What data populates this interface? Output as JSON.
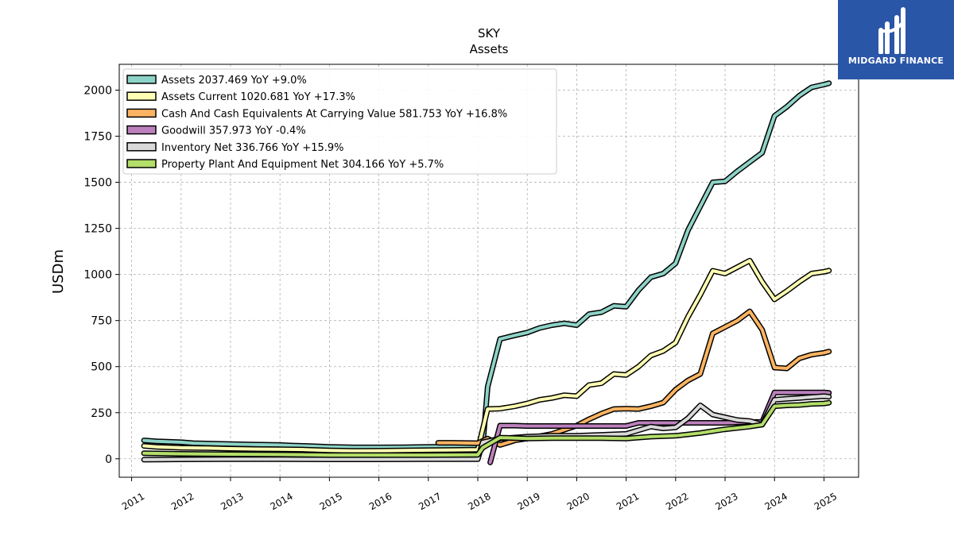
{
  "brand": {
    "name": "MIDGARD FINANCE",
    "color": "#2a56a8"
  },
  "chart_data": {
    "type": "line",
    "title": "SKY",
    "subtitle": "Assets",
    "ylabel": "USDm",
    "xlabel": "",
    "ylim": [
      -100,
      2140
    ],
    "xlim": [
      2010.75,
      2025.7
    ],
    "yticks": [
      0,
      250,
      500,
      750,
      1000,
      1250,
      1500,
      1750,
      2000
    ],
    "xticks": [
      "2011",
      "2012",
      "2013",
      "2014",
      "2015",
      "2016",
      "2017",
      "2018",
      "2019",
      "2020",
      "2021",
      "2022",
      "2023",
      "2024",
      "2025"
    ],
    "grid": true,
    "legend_position": "top-left",
    "series": [
      {
        "name": "Assets",
        "legend": "Assets  2037.469 YoY +9.0%",
        "color": "#8dd3c7",
        "points": [
          [
            2011.25,
            100
          ],
          [
            2011.5,
            95
          ],
          [
            2012,
            90
          ],
          [
            2012.25,
            85
          ],
          [
            2013,
            80
          ],
          [
            2013.5,
            77
          ],
          [
            2014,
            75
          ],
          [
            2014.25,
            72
          ],
          [
            2014.5,
            70
          ],
          [
            2015,
            65
          ],
          [
            2015.5,
            62
          ],
          [
            2016,
            62
          ],
          [
            2016.5,
            63
          ],
          [
            2017,
            65
          ],
          [
            2017.5,
            66
          ],
          [
            2018,
            68
          ],
          [
            2018.1,
            70
          ],
          [
            2018.2,
            390
          ],
          [
            2018.45,
            650
          ],
          [
            2018.75,
            670
          ],
          [
            2019,
            685
          ],
          [
            2019.25,
            710
          ],
          [
            2019.5,
            725
          ],
          [
            2019.75,
            735
          ],
          [
            2020,
            725
          ],
          [
            2020.25,
            785
          ],
          [
            2020.5,
            795
          ],
          [
            2020.75,
            830
          ],
          [
            2021,
            825
          ],
          [
            2021.25,
            915
          ],
          [
            2021.5,
            985
          ],
          [
            2021.75,
            1005
          ],
          [
            2022,
            1060
          ],
          [
            2022.25,
            1240
          ],
          [
            2022.5,
            1370
          ],
          [
            2022.75,
            1500
          ],
          [
            2023,
            1505
          ],
          [
            2023.25,
            1560
          ],
          [
            2023.5,
            1610
          ],
          [
            2023.75,
            1660
          ],
          [
            2024,
            1860
          ],
          [
            2024.25,
            1910
          ],
          [
            2024.5,
            1970
          ],
          [
            2024.75,
            2015
          ],
          [
            2025,
            2030
          ],
          [
            2025.1,
            2037.469
          ]
        ]
      },
      {
        "name": "Assets Current",
        "legend": "Assets Current  1020.681 YoY +17.3%",
        "color": "#ffffb3",
        "points": [
          [
            2011.25,
            70
          ],
          [
            2011.5,
            65
          ],
          [
            2012,
            60
          ],
          [
            2012.5,
            58
          ],
          [
            2013,
            55
          ],
          [
            2013.5,
            53
          ],
          [
            2014,
            52
          ],
          [
            2014.5,
            50
          ],
          [
            2015,
            45
          ],
          [
            2015.5,
            43
          ],
          [
            2016,
            44
          ],
          [
            2016.5,
            45
          ],
          [
            2017,
            47
          ],
          [
            2017.5,
            48
          ],
          [
            2018,
            50
          ],
          [
            2018.2,
            270
          ],
          [
            2018.45,
            272
          ],
          [
            2018.75,
            285
          ],
          [
            2019,
            300
          ],
          [
            2019.25,
            320
          ],
          [
            2019.5,
            330
          ],
          [
            2019.75,
            345
          ],
          [
            2020,
            340
          ],
          [
            2020.25,
            400
          ],
          [
            2020.5,
            410
          ],
          [
            2020.75,
            460
          ],
          [
            2021,
            455
          ],
          [
            2021.25,
            500
          ],
          [
            2021.5,
            560
          ],
          [
            2021.75,
            585
          ],
          [
            2022,
            630
          ],
          [
            2022.25,
            770
          ],
          [
            2022.5,
            890
          ],
          [
            2022.75,
            1020
          ],
          [
            2023,
            1005
          ],
          [
            2023.25,
            1040
          ],
          [
            2023.5,
            1075
          ],
          [
            2023.75,
            960
          ],
          [
            2024,
            865
          ],
          [
            2024.25,
            910
          ],
          [
            2024.5,
            960
          ],
          [
            2024.75,
            1005
          ],
          [
            2025,
            1015
          ],
          [
            2025.1,
            1020.681
          ]
        ]
      },
      {
        "name": "Cash And Cash Equivalents At Carrying Value",
        "legend": "Cash And Cash Equivalents At Carrying Value  581.753 YoY +16.8%",
        "color": "#fdb462",
        "points": [
          [
            2017.2,
            87
          ],
          [
            2017.5,
            87
          ],
          [
            2018,
            85
          ],
          [
            2018.2,
            110
          ],
          [
            2018.45,
            75
          ],
          [
            2018.75,
            100
          ],
          [
            2019,
            110
          ],
          [
            2019.5,
            135
          ],
          [
            2020,
            180
          ],
          [
            2020.25,
            215
          ],
          [
            2020.5,
            245
          ],
          [
            2020.75,
            270
          ],
          [
            2021,
            272
          ],
          [
            2021.25,
            270
          ],
          [
            2021.5,
            285
          ],
          [
            2021.75,
            305
          ],
          [
            2022,
            375
          ],
          [
            2022.25,
            425
          ],
          [
            2022.5,
            460
          ],
          [
            2022.75,
            680
          ],
          [
            2023,
            715
          ],
          [
            2023.25,
            750
          ],
          [
            2023.5,
            800
          ],
          [
            2023.75,
            700
          ],
          [
            2024,
            495
          ],
          [
            2024.25,
            490
          ],
          [
            2024.5,
            545
          ],
          [
            2024.75,
            565
          ],
          [
            2025,
            575
          ],
          [
            2025.1,
            581.753
          ]
        ]
      },
      {
        "name": "Goodwill",
        "legend": "Goodwill  357.973 YoY -0.4%",
        "color": "#bc80bd",
        "points": [
          [
            2018.25,
            -20
          ],
          [
            2018.45,
            180
          ],
          [
            2018.75,
            180
          ],
          [
            2019,
            178
          ],
          [
            2019.5,
            178
          ],
          [
            2020,
            178
          ],
          [
            2020.5,
            178
          ],
          [
            2021,
            178
          ],
          [
            2021.25,
            195
          ],
          [
            2021.5,
            195
          ],
          [
            2022,
            195
          ],
          [
            2022.5,
            195
          ],
          [
            2023,
            195
          ],
          [
            2023.5,
            200
          ],
          [
            2023.75,
            200
          ],
          [
            2024,
            360
          ],
          [
            2024.5,
            360
          ],
          [
            2025,
            360
          ],
          [
            2025.1,
            357.973
          ]
        ]
      },
      {
        "name": "Inventory Net",
        "legend": "Inventory Net  336.766 YoY +15.9%",
        "color": "#d9d9d9",
        "points": [
          [
            2011.25,
            -5
          ],
          [
            2012,
            -3
          ],
          [
            2013,
            -2
          ],
          [
            2014,
            -2
          ],
          [
            2015,
            -3
          ],
          [
            2016,
            -3
          ],
          [
            2017,
            -2
          ],
          [
            2018,
            -2
          ],
          [
            2018.1,
            90
          ],
          [
            2018.45,
            110
          ],
          [
            2019,
            120
          ],
          [
            2019.5,
            125
          ],
          [
            2020,
            125
          ],
          [
            2020.5,
            130
          ],
          [
            2021,
            135
          ],
          [
            2021.5,
            175
          ],
          [
            2021.75,
            165
          ],
          [
            2022,
            170
          ],
          [
            2022.25,
            220
          ],
          [
            2022.5,
            290
          ],
          [
            2022.75,
            240
          ],
          [
            2023,
            225
          ],
          [
            2023.25,
            210
          ],
          [
            2023.5,
            205
          ],
          [
            2023.75,
            185
          ],
          [
            2024,
            320
          ],
          [
            2024.25,
            325
          ],
          [
            2024.5,
            330
          ],
          [
            2024.75,
            335
          ],
          [
            2025,
            340
          ],
          [
            2025.1,
            336.766
          ]
        ]
      },
      {
        "name": "Property Plant And Equipment Net",
        "legend": "Property Plant And Equipment Net  304.166 YoY +5.7%",
        "color": "#b3de69",
        "points": [
          [
            2011.25,
            30
          ],
          [
            2012,
            27
          ],
          [
            2013,
            25
          ],
          [
            2014,
            23
          ],
          [
            2014.5,
            22
          ],
          [
            2015,
            20
          ],
          [
            2016,
            20
          ],
          [
            2017,
            20
          ],
          [
            2018,
            22
          ],
          [
            2018.1,
            60
          ],
          [
            2018.45,
            115
          ],
          [
            2019,
            110
          ],
          [
            2019.5,
            112
          ],
          [
            2020,
            112
          ],
          [
            2020.5,
            112
          ],
          [
            2021,
            110
          ],
          [
            2021.5,
            120
          ],
          [
            2022,
            125
          ],
          [
            2022.5,
            140
          ],
          [
            2023,
            160
          ],
          [
            2023.5,
            175
          ],
          [
            2023.75,
            185
          ],
          [
            2024,
            285
          ],
          [
            2024.25,
            290
          ],
          [
            2024.5,
            292
          ],
          [
            2024.75,
            298
          ],
          [
            2025,
            300
          ],
          [
            2025.1,
            304.166
          ]
        ]
      }
    ]
  }
}
